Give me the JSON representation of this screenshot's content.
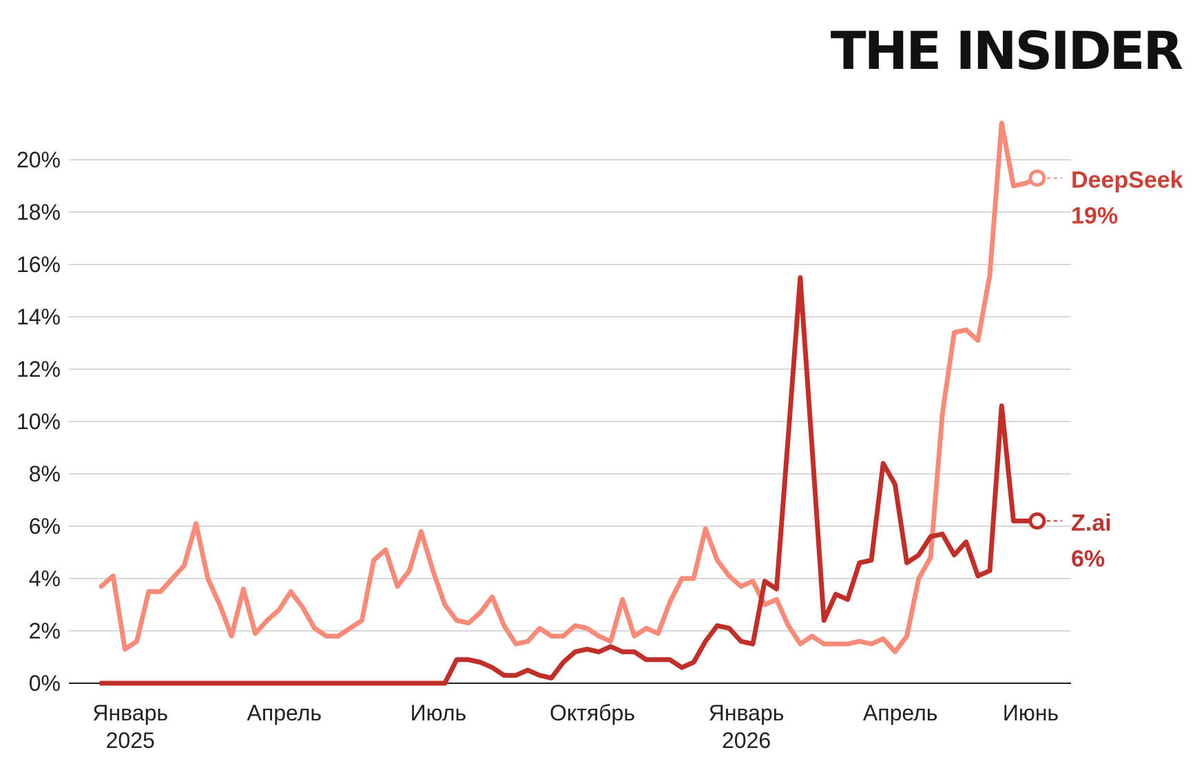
{
  "brand": "THE INSIDER",
  "chart_data": {
    "type": "line",
    "title": "",
    "xlabel": "",
    "ylabel": "",
    "ylim": [
      0,
      20
    ],
    "grid": true,
    "y_ticks": [
      "0%",
      "2%",
      "4%",
      "6%",
      "8%",
      "10%",
      "12%",
      "14%",
      "16%",
      "18%",
      "20%"
    ],
    "x_ticks": [
      {
        "index": 1,
        "label": "Январь",
        "sublabel": "2025"
      },
      {
        "index": 14,
        "label": "Апрель",
        "sublabel": ""
      },
      {
        "index": 27,
        "label": "Июль",
        "sublabel": ""
      },
      {
        "index": 40,
        "label": "Октябрь",
        "sublabel": ""
      },
      {
        "index": 53,
        "label": "Январь",
        "sublabel": "2026"
      },
      {
        "index": 66,
        "label": "Апрель",
        "sublabel": ""
      },
      {
        "index": 77,
        "label": "Июнь",
        "sublabel": ""
      }
    ],
    "series": [
      {
        "name": "DeepSeek",
        "end_value": "19%",
        "color": "#f58b78",
        "label_color": "#c8423a",
        "values": [
          3.7,
          4.1,
          1.3,
          1.6,
          3.5,
          3.5,
          4.0,
          4.5,
          6.1,
          4.0,
          3.0,
          1.8,
          3.6,
          1.9,
          2.4,
          2.8,
          3.5,
          2.9,
          2.1,
          1.8,
          1.8,
          2.1,
          2.4,
          4.7,
          5.1,
          3.7,
          4.3,
          5.8,
          4.3,
          3.0,
          2.4,
          2.3,
          2.7,
          3.3,
          2.2,
          1.5,
          1.6,
          2.1,
          1.8,
          1.8,
          2.2,
          2.1,
          1.8,
          1.6,
          3.2,
          1.8,
          2.1,
          1.9,
          3.1,
          4.0,
          4.0,
          5.9,
          4.7,
          4.1,
          3.7,
          3.9,
          3.0,
          3.2,
          2.2,
          1.5,
          1.8,
          1.5,
          1.5,
          1.5,
          1.6,
          1.5,
          1.7,
          1.2,
          1.8,
          4.0,
          4.8,
          10.3,
          13.4,
          13.5,
          13.1,
          15.6,
          21.4,
          19.0,
          19.1,
          19.3
        ]
      },
      {
        "name": "Z.ai",
        "end_value": "6%",
        "color": "#c0302b",
        "label_color": "#b83532",
        "values": [
          0,
          0,
          0,
          0,
          0,
          0,
          0,
          0,
          0,
          0,
          0,
          0,
          0,
          0,
          0,
          0,
          0,
          0,
          0,
          0,
          0,
          0,
          0,
          0,
          0,
          0,
          0,
          0,
          0,
          0,
          0.9,
          0.9,
          0.8,
          0.6,
          0.3,
          0.3,
          0.5,
          0.3,
          0.2,
          0.8,
          1.2,
          1.3,
          1.2,
          1.4,
          1.2,
          1.2,
          0.9,
          0.9,
          0.9,
          0.6,
          0.8,
          1.6,
          2.2,
          2.1,
          1.6,
          1.5,
          3.9,
          3.6,
          9.5,
          15.5,
          9.0,
          2.4,
          3.4,
          3.2,
          4.6,
          4.7,
          8.4,
          7.6,
          4.6,
          4.9,
          5.6,
          5.7,
          4.9,
          5.4,
          4.1,
          4.3,
          10.6,
          6.2,
          6.2,
          6.2
        ]
      }
    ]
  }
}
